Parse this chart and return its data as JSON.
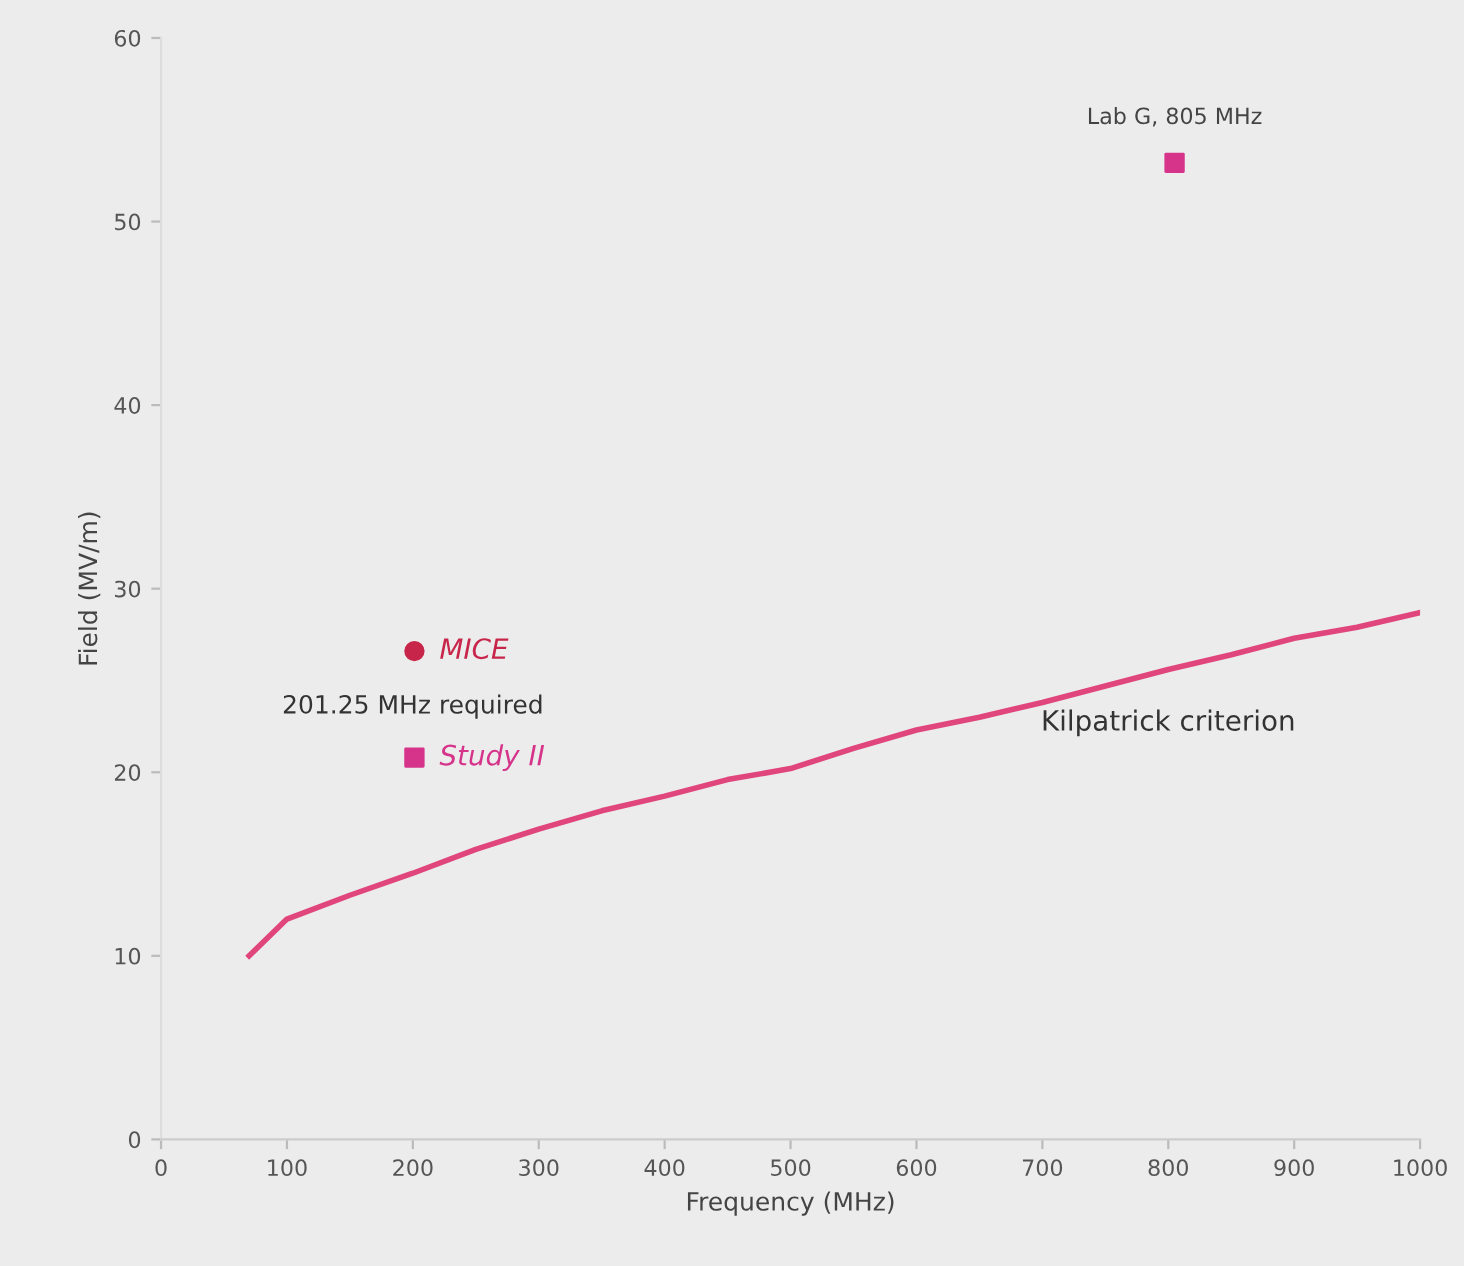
{
  "chart_data": {
    "type": "line",
    "xlabel": "Frequency (MHz)",
    "ylabel": "Field (MV/m)",
    "xlim": [
      0,
      1000
    ],
    "ylim": [
      0,
      60
    ],
    "xticks": [
      0,
      100,
      200,
      300,
      400,
      500,
      600,
      700,
      800,
      900,
      1000
    ],
    "yticks": [
      0,
      10,
      20,
      30,
      40,
      50,
      60
    ],
    "grid": false,
    "legend": false,
    "series": [
      {
        "name": "Kilpatrick criterion",
        "color": "#e0457b",
        "marker": "none",
        "line_style": "solid",
        "x": [
          70,
          100,
          150,
          200,
          250,
          300,
          350,
          400,
          450,
          500,
          550,
          600,
          650,
          700,
          750,
          800,
          850,
          900,
          950,
          1000
        ],
        "values": [
          10.0,
          12.0,
          13.3,
          14.5,
          15.8,
          16.9,
          17.9,
          18.7,
          19.6,
          20.2,
          21.3,
          22.3,
          23.0,
          23.8,
          24.7,
          25.6,
          26.4,
          27.3,
          27.9,
          28.7
        ]
      },
      {
        "name": "MICE",
        "type": "scatter",
        "color": "#c8254a",
        "marker": "circle",
        "x": [
          201.25
        ],
        "values": [
          26.6
        ]
      },
      {
        "name": "Study II",
        "type": "scatter",
        "color": "#d6338a",
        "marker": "square",
        "x": [
          201.25
        ],
        "values": [
          20.8
        ]
      },
      {
        "name": "Lab G, 805 MHz",
        "type": "scatter",
        "color": "#d6338a",
        "marker": "square",
        "x": [
          805
        ],
        "values": [
          53.2
        ]
      }
    ],
    "annotations": [
      "201.25 MHz required"
    ]
  }
}
